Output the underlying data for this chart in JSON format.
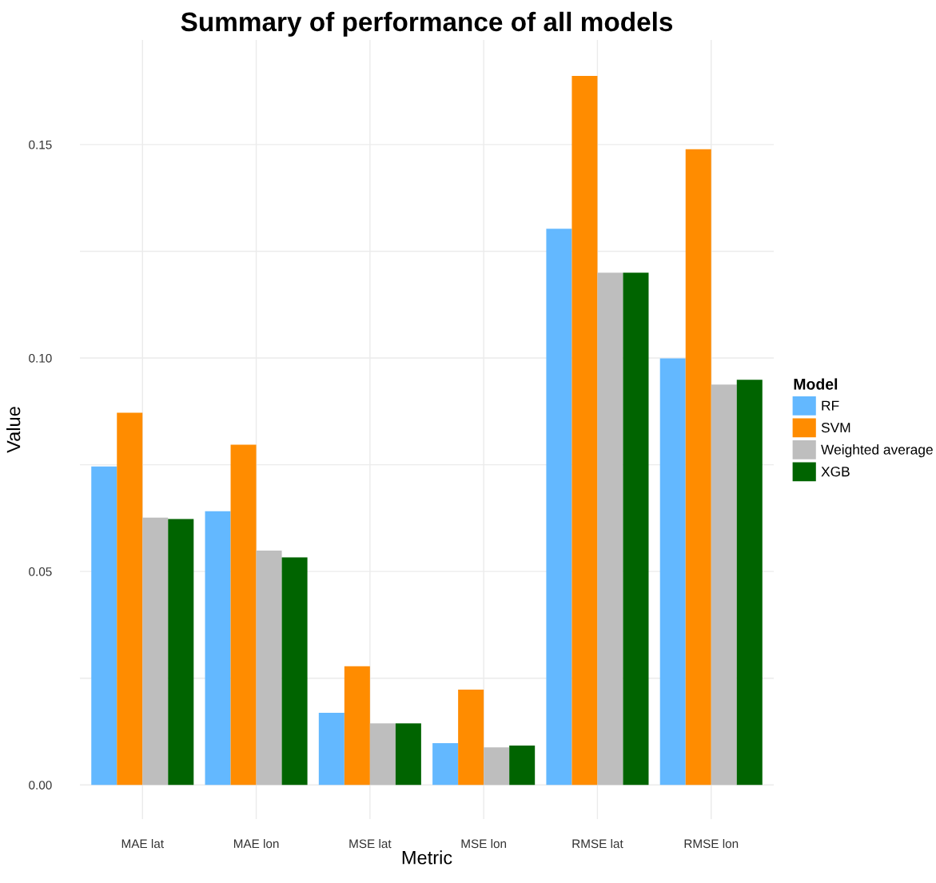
{
  "chart_data": {
    "type": "bar",
    "title": "Summary of performance of all models",
    "xlabel": "Metric",
    "ylabel": "Value",
    "legend_title": "Model",
    "categories": [
      "MAE lat",
      "MAE lon",
      "MSE lat",
      "MSE lon",
      "RMSE lat",
      "RMSE lon"
    ],
    "series": [
      {
        "name": "RF",
        "color": "#63b8ff",
        "values": [
          0.0746,
          0.0641,
          0.0169,
          0.0098,
          0.1303,
          0.0999
        ]
      },
      {
        "name": "SVM",
        "color": "#ff8c00",
        "values": [
          0.0872,
          0.0797,
          0.0278,
          0.0223,
          0.1661,
          0.1489
        ]
      },
      {
        "name": "Weighted average",
        "color": "#bebebe",
        "values": [
          0.0626,
          0.0549,
          0.0144,
          0.0088,
          0.12,
          0.0938
        ]
      },
      {
        "name": "XGB",
        "color": "#006400",
        "values": [
          0.0623,
          0.0533,
          0.0144,
          0.0092,
          0.12,
          0.0949
        ]
      }
    ],
    "ylim": [
      -0.008,
      0.1745
    ],
    "yticks": [
      {
        "value": 0,
        "label": "0.00"
      },
      {
        "value": 0.025,
        "label": null
      },
      {
        "value": 0.05,
        "label": "0.05"
      },
      {
        "value": 0.075,
        "label": null
      },
      {
        "value": 0.1,
        "label": "0.10"
      },
      {
        "value": 0.125,
        "label": null
      },
      {
        "value": 0.15,
        "label": "0.15"
      }
    ],
    "grid": true,
    "legend": "right"
  }
}
